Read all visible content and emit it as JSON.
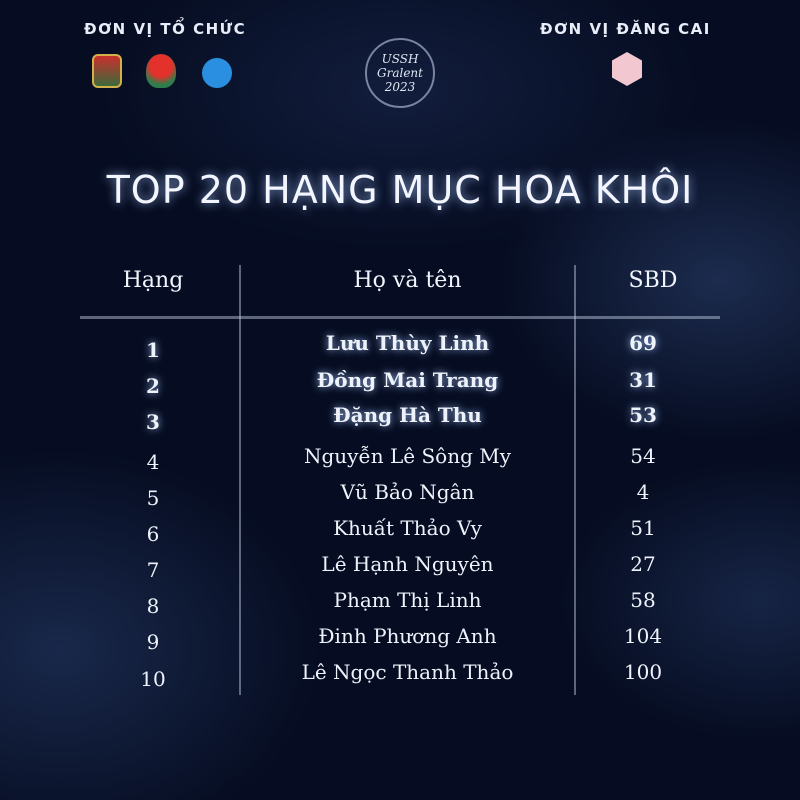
{
  "header": {
    "organizer_label": "ĐƠN VỊ TỔ CHỨC",
    "host_label": "ĐƠN VỊ ĐĂNG CAI",
    "event_logo_text": "USSH Gralent 2023"
  },
  "title": "TOP 20 HẠNG MỤC HOA KHÔI",
  "table": {
    "columns": [
      "Hạng",
      "Họ và tên",
      "SBD"
    ],
    "rows": [
      {
        "rank": "1",
        "name": "Lưu Thùy Linh",
        "sbd": "69"
      },
      {
        "rank": "2",
        "name": "Đồng Mai Trang",
        "sbd": "31"
      },
      {
        "rank": "3",
        "name": "Đặng Hà Thu",
        "sbd": "53"
      },
      {
        "rank": "4",
        "name": "Nguyễn Lê Sông My",
        "sbd": "54"
      },
      {
        "rank": "5",
        "name": "Vũ Bảo Ngân",
        "sbd": "4"
      },
      {
        "rank": "6",
        "name": "Khuất Thảo Vy",
        "sbd": "51"
      },
      {
        "rank": "7",
        "name": "Lê Hạnh Nguyên",
        "sbd": "27"
      },
      {
        "rank": "8",
        "name": "Phạm Thị Linh",
        "sbd": "58"
      },
      {
        "rank": "9",
        "name": "Đinh Phương Anh",
        "sbd": "104"
      },
      {
        "rank": "10",
        "name": "Lê Ngọc Thanh Thảo",
        "sbd": "100"
      }
    ]
  }
}
